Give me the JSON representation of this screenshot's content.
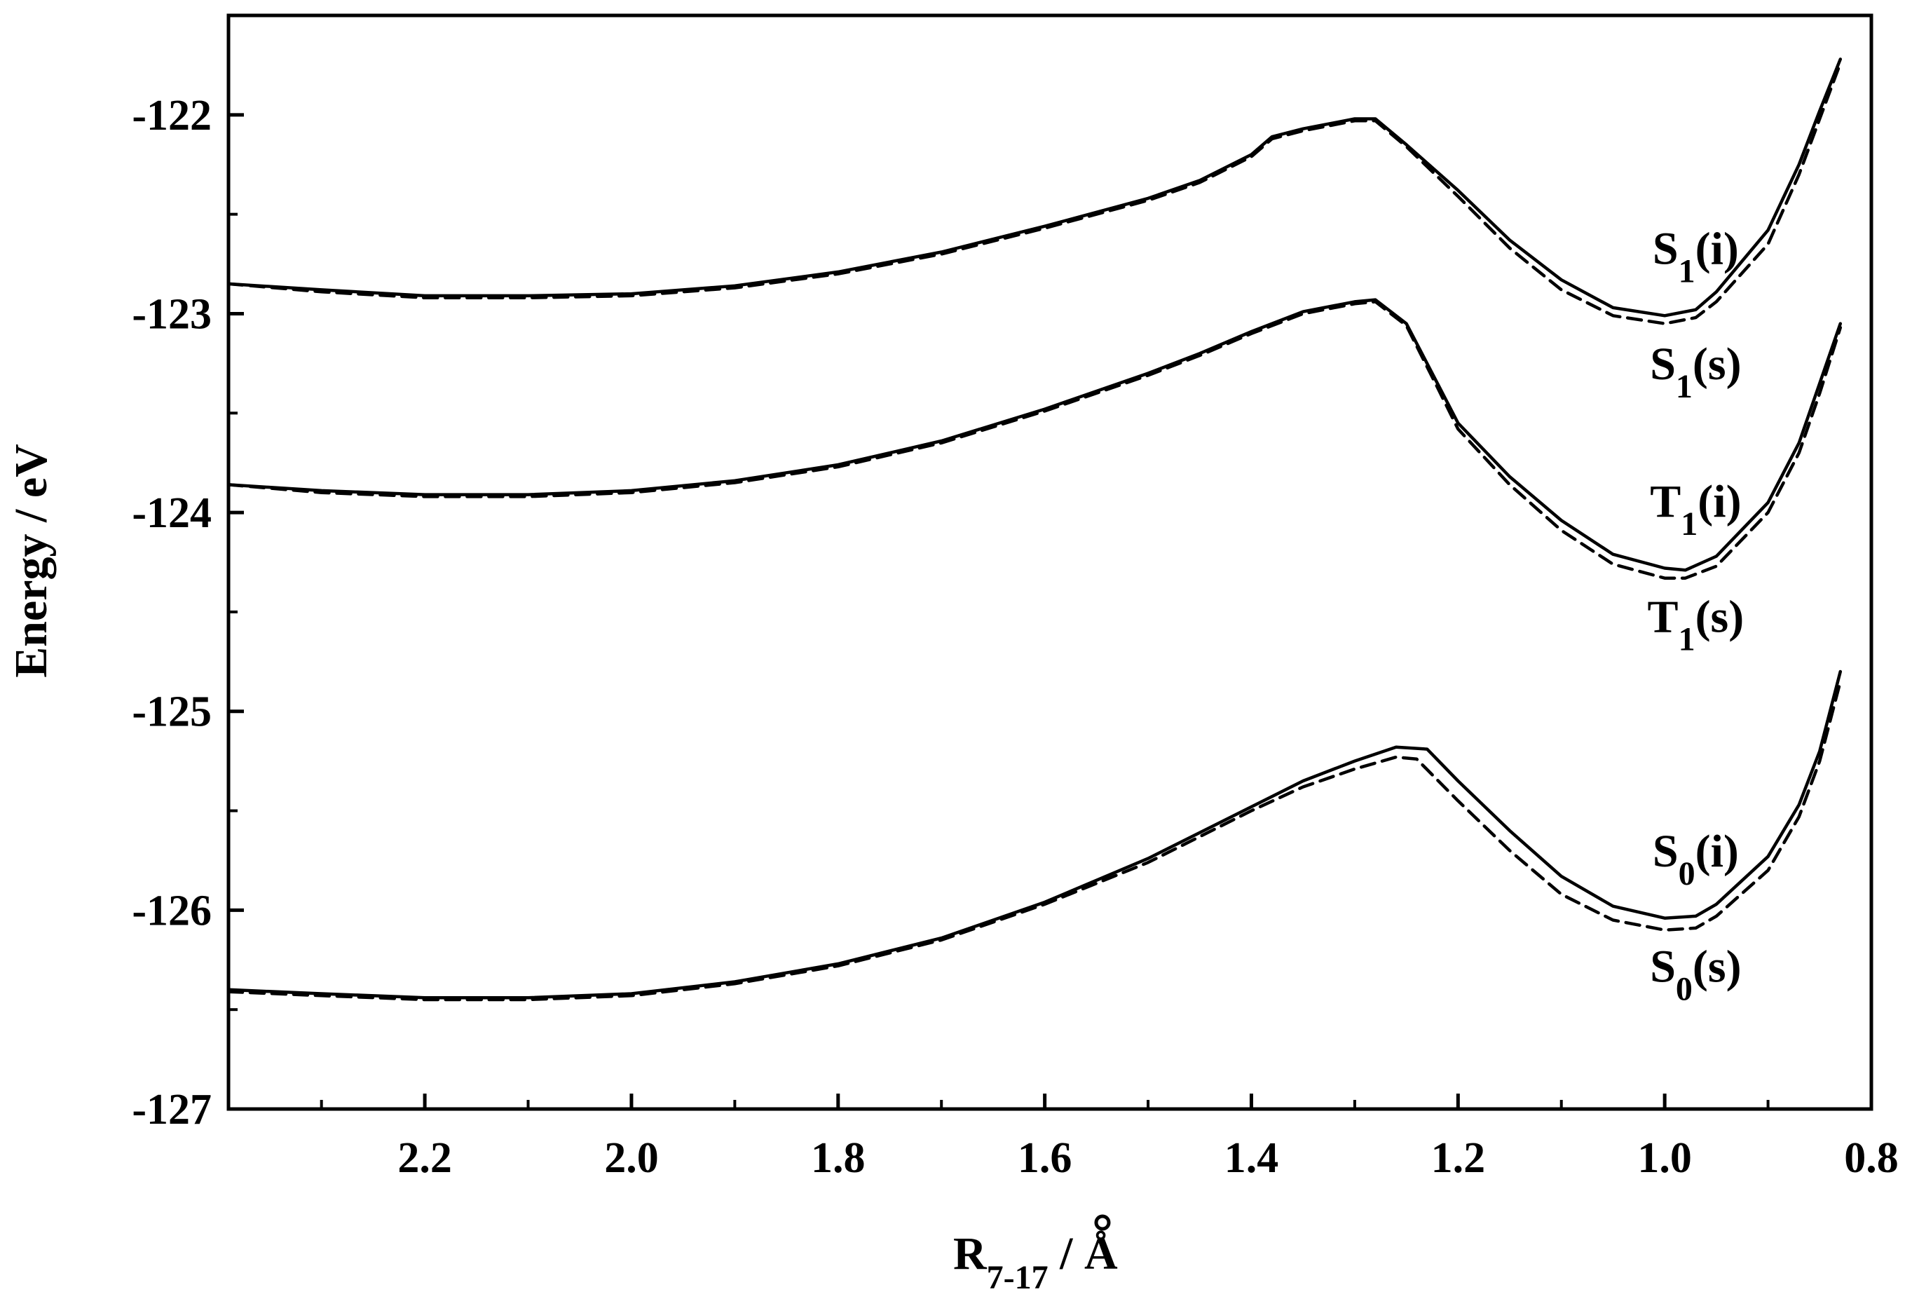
{
  "chart_data": {
    "type": "line",
    "title": "",
    "xlabel": {
      "main": "R",
      "subscript": "7-17",
      "suffix": " / Å"
    },
    "ylabel": "Energy / eV",
    "xlim": [
      2.39,
      0.8
    ],
    "ylim": [
      -127,
      -121.5
    ],
    "x_reversed": true,
    "x_ticks": [
      "2.2",
      "2.0",
      "1.8",
      "1.6",
      "1.4",
      "1.2",
      "1.0",
      "0.8"
    ],
    "x_tick_values": [
      2.2,
      2.0,
      1.8,
      1.6,
      1.4,
      1.2,
      1.0,
      0.8
    ],
    "y_ticks": [
      "-122",
      "-123",
      "-124",
      "-125",
      "-126",
      "-127"
    ],
    "y_tick_values": [
      -122,
      -123,
      -124,
      -125,
      -126,
      -127
    ],
    "grid": false,
    "series": [
      {
        "name": "S1(i)",
        "label_main": "S",
        "label_sub": "1",
        "label_tail": "(i)",
        "style": "solid",
        "points": [
          [
            2.39,
            -122.85
          ],
          [
            2.3,
            -122.88
          ],
          [
            2.2,
            -122.91
          ],
          [
            2.1,
            -122.91
          ],
          [
            2.0,
            -122.9
          ],
          [
            1.9,
            -122.86
          ],
          [
            1.8,
            -122.79
          ],
          [
            1.7,
            -122.69
          ],
          [
            1.6,
            -122.56
          ],
          [
            1.5,
            -122.42
          ],
          [
            1.45,
            -122.33
          ],
          [
            1.4,
            -122.2
          ],
          [
            1.38,
            -122.11
          ],
          [
            1.35,
            -122.07
          ],
          [
            1.32,
            -122.04
          ],
          [
            1.3,
            -122.02
          ],
          [
            1.28,
            -122.02
          ],
          [
            1.25,
            -122.15
          ],
          [
            1.2,
            -122.38
          ],
          [
            1.15,
            -122.63
          ],
          [
            1.1,
            -122.83
          ],
          [
            1.05,
            -122.97
          ],
          [
            1.0,
            -123.01
          ],
          [
            0.97,
            -122.98
          ],
          [
            0.95,
            -122.89
          ],
          [
            0.9,
            -122.58
          ],
          [
            0.87,
            -122.25
          ],
          [
            0.85,
            -121.98
          ],
          [
            0.83,
            -121.72
          ]
        ],
        "label_anchor": [
          0.97,
          -122.75
        ]
      },
      {
        "name": "S1(s)",
        "label_main": "S",
        "label_sub": "1",
        "label_tail": "(s)",
        "style": "dashed",
        "points": [
          [
            2.39,
            -122.85
          ],
          [
            2.3,
            -122.89
          ],
          [
            2.2,
            -122.92
          ],
          [
            2.1,
            -122.92
          ],
          [
            2.0,
            -122.91
          ],
          [
            1.9,
            -122.87
          ],
          [
            1.8,
            -122.8
          ],
          [
            1.7,
            -122.7
          ],
          [
            1.6,
            -122.57
          ],
          [
            1.5,
            -122.43
          ],
          [
            1.45,
            -122.34
          ],
          [
            1.4,
            -122.21
          ],
          [
            1.38,
            -122.12
          ],
          [
            1.35,
            -122.08
          ],
          [
            1.32,
            -122.05
          ],
          [
            1.3,
            -122.03
          ],
          [
            1.28,
            -122.03
          ],
          [
            1.25,
            -122.16
          ],
          [
            1.2,
            -122.41
          ],
          [
            1.15,
            -122.67
          ],
          [
            1.1,
            -122.88
          ],
          [
            1.05,
            -123.01
          ],
          [
            1.0,
            -123.05
          ],
          [
            0.97,
            -123.02
          ],
          [
            0.95,
            -122.94
          ],
          [
            0.9,
            -122.65
          ],
          [
            0.87,
            -122.3
          ],
          [
            0.85,
            -122.02
          ],
          [
            0.83,
            -121.74
          ]
        ],
        "label_anchor": [
          0.97,
          -123.33
        ]
      },
      {
        "name": "T1(i)",
        "label_main": "T",
        "label_sub": "1",
        "label_tail": "(i)",
        "style": "solid",
        "points": [
          [
            2.39,
            -123.86
          ],
          [
            2.3,
            -123.89
          ],
          [
            2.2,
            -123.91
          ],
          [
            2.1,
            -123.91
          ],
          [
            2.0,
            -123.89
          ],
          [
            1.9,
            -123.84
          ],
          [
            1.8,
            -123.76
          ],
          [
            1.7,
            -123.64
          ],
          [
            1.6,
            -123.48
          ],
          [
            1.5,
            -123.3
          ],
          [
            1.45,
            -123.2
          ],
          [
            1.4,
            -123.09
          ],
          [
            1.35,
            -122.99
          ],
          [
            1.3,
            -122.94
          ],
          [
            1.28,
            -122.93
          ],
          [
            1.25,
            -123.05
          ],
          [
            1.22,
            -123.35
          ],
          [
            1.2,
            -123.55
          ],
          [
            1.15,
            -123.82
          ],
          [
            1.1,
            -124.04
          ],
          [
            1.05,
            -124.21
          ],
          [
            1.0,
            -124.28
          ],
          [
            0.98,
            -124.29
          ],
          [
            0.95,
            -124.22
          ],
          [
            0.9,
            -123.95
          ],
          [
            0.87,
            -123.65
          ],
          [
            0.85,
            -123.35
          ],
          [
            0.83,
            -123.05
          ]
        ],
        "label_anchor": [
          0.97,
          -124.02
        ]
      },
      {
        "name": "T1(s)",
        "label_main": "T",
        "label_sub": "1",
        "label_tail": "(s)",
        "style": "dashed",
        "points": [
          [
            2.39,
            -123.86
          ],
          [
            2.3,
            -123.9
          ],
          [
            2.2,
            -123.92
          ],
          [
            2.1,
            -123.92
          ],
          [
            2.0,
            -123.9
          ],
          [
            1.9,
            -123.85
          ],
          [
            1.8,
            -123.77
          ],
          [
            1.7,
            -123.65
          ],
          [
            1.6,
            -123.49
          ],
          [
            1.5,
            -123.31
          ],
          [
            1.45,
            -123.21
          ],
          [
            1.4,
            -123.1
          ],
          [
            1.35,
            -123.0
          ],
          [
            1.3,
            -122.95
          ],
          [
            1.28,
            -122.94
          ],
          [
            1.25,
            -123.06
          ],
          [
            1.22,
            -123.37
          ],
          [
            1.2,
            -123.58
          ],
          [
            1.15,
            -123.86
          ],
          [
            1.1,
            -124.09
          ],
          [
            1.05,
            -124.26
          ],
          [
            1.0,
            -124.33
          ],
          [
            0.98,
            -124.33
          ],
          [
            0.95,
            -124.27
          ],
          [
            0.9,
            -124.0
          ],
          [
            0.87,
            -123.7
          ],
          [
            0.85,
            -123.4
          ],
          [
            0.83,
            -123.07
          ]
        ],
        "label_anchor": [
          0.97,
          -124.6
        ]
      },
      {
        "name": "S0(i)",
        "label_main": "S",
        "label_sub": "0",
        "label_tail": "(i)",
        "style": "solid",
        "points": [
          [
            2.39,
            -126.4
          ],
          [
            2.3,
            -126.42
          ],
          [
            2.2,
            -126.44
          ],
          [
            2.1,
            -126.44
          ],
          [
            2.0,
            -126.42
          ],
          [
            1.9,
            -126.36
          ],
          [
            1.8,
            -126.27
          ],
          [
            1.7,
            -126.14
          ],
          [
            1.6,
            -125.96
          ],
          [
            1.5,
            -125.74
          ],
          [
            1.45,
            -125.61
          ],
          [
            1.4,
            -125.48
          ],
          [
            1.35,
            -125.35
          ],
          [
            1.3,
            -125.25
          ],
          [
            1.26,
            -125.18
          ],
          [
            1.23,
            -125.19
          ],
          [
            1.2,
            -125.35
          ],
          [
            1.15,
            -125.6
          ],
          [
            1.1,
            -125.83
          ],
          [
            1.05,
            -125.98
          ],
          [
            1.0,
            -126.04
          ],
          [
            0.97,
            -126.03
          ],
          [
            0.95,
            -125.97
          ],
          [
            0.9,
            -125.73
          ],
          [
            0.87,
            -125.47
          ],
          [
            0.85,
            -125.2
          ],
          [
            0.83,
            -124.8
          ]
        ],
        "label_anchor": [
          0.97,
          -125.78
        ]
      },
      {
        "name": "S0(s)",
        "label_main": "S",
        "label_sub": "0",
        "label_tail": "(s)",
        "style": "dashed",
        "points": [
          [
            2.39,
            -126.41
          ],
          [
            2.3,
            -126.43
          ],
          [
            2.2,
            -126.45
          ],
          [
            2.1,
            -126.45
          ],
          [
            2.0,
            -126.43
          ],
          [
            1.9,
            -126.37
          ],
          [
            1.8,
            -126.28
          ],
          [
            1.7,
            -126.15
          ],
          [
            1.6,
            -125.97
          ],
          [
            1.5,
            -125.76
          ],
          [
            1.45,
            -125.63
          ],
          [
            1.4,
            -125.5
          ],
          [
            1.35,
            -125.38
          ],
          [
            1.3,
            -125.29
          ],
          [
            1.26,
            -125.23
          ],
          [
            1.24,
            -125.24
          ],
          [
            1.2,
            -125.45
          ],
          [
            1.15,
            -125.7
          ],
          [
            1.1,
            -125.92
          ],
          [
            1.05,
            -126.05
          ],
          [
            1.0,
            -126.1
          ],
          [
            0.97,
            -126.09
          ],
          [
            0.95,
            -126.03
          ],
          [
            0.9,
            -125.8
          ],
          [
            0.87,
            -125.53
          ],
          [
            0.85,
            -125.25
          ],
          [
            0.83,
            -124.85
          ]
        ],
        "label_anchor": [
          0.97,
          -126.36
        ]
      }
    ]
  }
}
